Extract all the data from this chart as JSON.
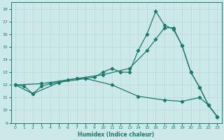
{
  "xlabel": "Humidex (Indice chaleur)",
  "background_color": "#cde8e8",
  "line_color": "#1a7a6e",
  "grid_color": "#b8d8d8",
  "xlim": [
    -0.5,
    23.5
  ],
  "ylim": [
    9,
    18.5
  ],
  "yticks": [
    9,
    10,
    11,
    12,
    13,
    14,
    15,
    16,
    17,
    18
  ],
  "xticks": [
    0,
    1,
    2,
    3,
    4,
    5,
    6,
    7,
    8,
    9,
    10,
    11,
    12,
    13,
    14,
    15,
    16,
    17,
    18,
    19,
    20,
    21,
    22,
    23
  ],
  "line1_x": [
    0,
    1,
    2,
    3,
    4,
    5,
    6,
    7,
    8,
    9,
    10,
    11,
    12,
    13,
    14,
    15,
    16,
    17,
    18,
    19,
    20,
    21,
    22,
    23
  ],
  "line1_y": [
    12.0,
    11.9,
    11.3,
    11.9,
    12.1,
    12.2,
    12.4,
    12.5,
    12.5,
    12.6,
    13.0,
    13.3,
    13.0,
    13.0,
    14.7,
    16.0,
    17.8,
    16.7,
    16.4,
    15.1,
    13.0,
    11.8,
    10.4,
    9.5
  ],
  "line2_x": [
    0,
    3,
    7,
    10,
    13,
    15,
    16,
    17,
    18,
    19,
    20,
    21,
    22,
    23
  ],
  "line2_y": [
    12.0,
    12.1,
    12.5,
    12.8,
    13.3,
    14.7,
    15.6,
    16.5,
    16.5,
    15.1,
    13.0,
    11.8,
    10.4,
    9.5
  ],
  "line3_x": [
    0,
    2,
    5,
    8,
    11,
    14,
    17,
    19,
    21,
    22,
    23
  ],
  "line3_y": [
    12.0,
    11.3,
    12.2,
    12.5,
    12.0,
    11.1,
    10.8,
    10.7,
    11.0,
    10.4,
    9.5
  ]
}
